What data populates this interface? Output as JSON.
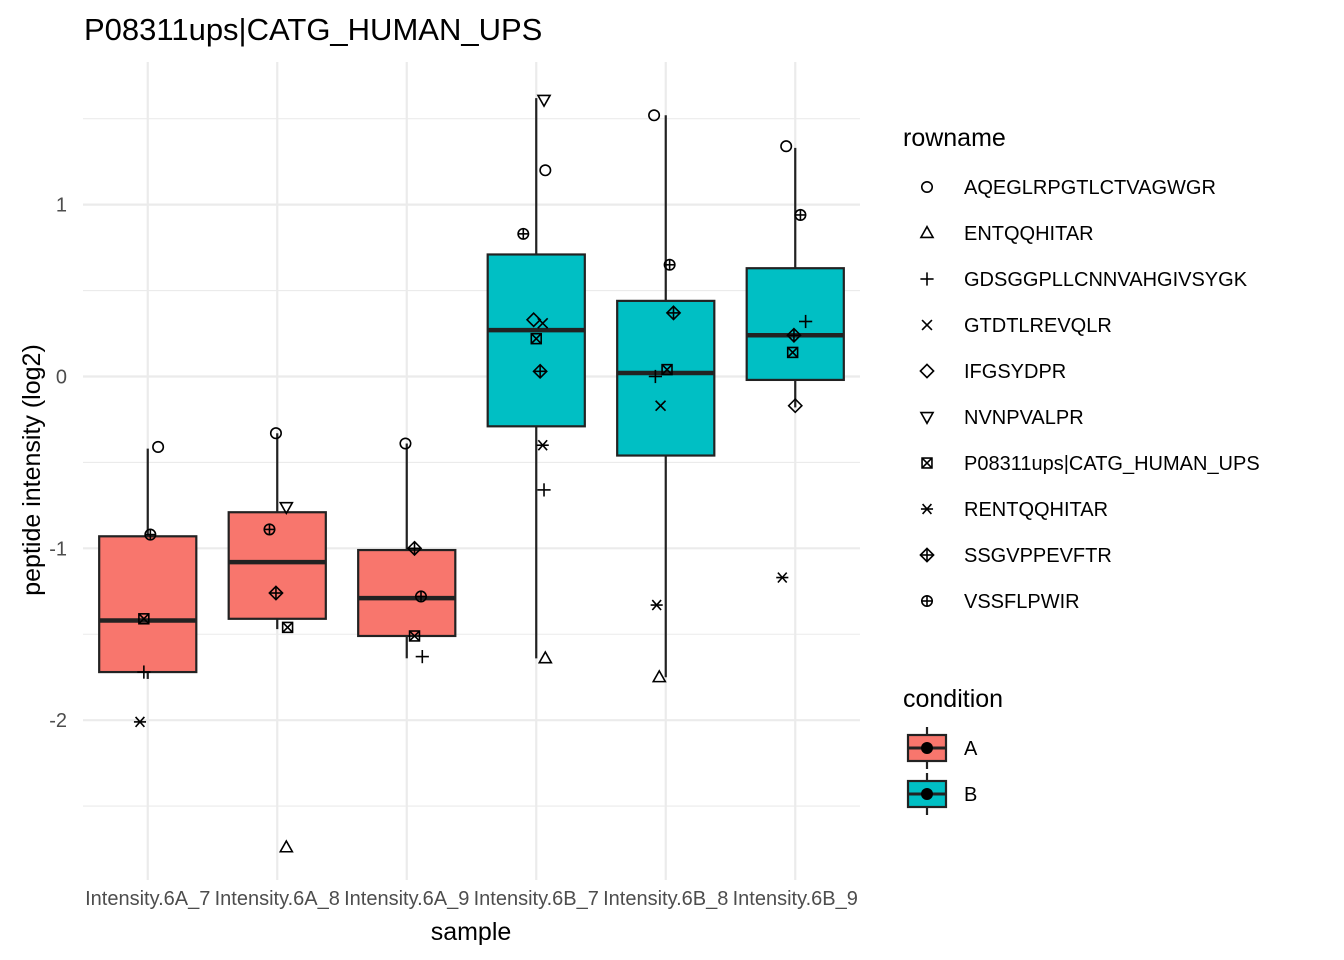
{
  "chart_data": {
    "type": "box",
    "title": "P08311ups|CATG_HUMAN_UPS",
    "xlabel": "sample",
    "ylabel": "peptide intensity (log2)",
    "categories": [
      "Intensity.6A_7",
      "Intensity.6A_8",
      "Intensity.6A_9",
      "Intensity.6B_7",
      "Intensity.6B_8",
      "Intensity.6B_9"
    ],
    "condition_of_category": [
      "A",
      "A",
      "A",
      "B",
      "B",
      "B"
    ],
    "yticks": [
      -2,
      -1,
      0,
      1
    ],
    "ylim": [
      -2.93,
      1.83
    ],
    "boxes": [
      {
        "category": "Intensity.6A_7",
        "q1": -1.72,
        "median": -1.42,
        "q3": -0.93,
        "whisker_low": -1.76,
        "whisker_high": -0.42
      },
      {
        "category": "Intensity.6A_8",
        "q1": -1.41,
        "median": -1.08,
        "q3": -0.79,
        "whisker_low": -1.47,
        "whisker_high": -0.33
      },
      {
        "category": "Intensity.6A_9",
        "q1": -1.51,
        "median": -1.29,
        "q3": -1.01,
        "whisker_low": -1.64,
        "whisker_high": -0.39
      },
      {
        "category": "Intensity.6B_7",
        "q1": -0.29,
        "median": 0.27,
        "q3": 0.71,
        "whisker_low": -1.64,
        "whisker_high": 1.62
      },
      {
        "category": "Intensity.6B_8",
        "q1": -0.46,
        "median": 0.02,
        "q3": 0.44,
        "whisker_low": -1.75,
        "whisker_high": 1.52
      },
      {
        "category": "Intensity.6B_9",
        "q1": -0.02,
        "median": 0.24,
        "q3": 0.63,
        "whisker_low": -0.18,
        "whisker_high": 1.33
      }
    ],
    "points": [
      {
        "category": "Intensity.6A_7",
        "rowname": "AQEGLRPGTLCTVAGWGR",
        "y": -0.41,
        "jitter": 0.08
      },
      {
        "category": "Intensity.6A_7",
        "rowname": "VSSFLPWIR",
        "y": -0.92,
        "jitter": 0.02
      },
      {
        "category": "Intensity.6A_7",
        "rowname": "P08311ups|CATG_HUMAN_UPS",
        "y": -1.41,
        "jitter": -0.03
      },
      {
        "category": "Intensity.6A_7",
        "rowname": "GDSGGPLLCNNVAHGIVSYGK",
        "y": -1.72,
        "jitter": -0.03
      },
      {
        "category": "Intensity.6A_7",
        "rowname": "RENTQQHITAR",
        "y": -2.01,
        "jitter": -0.06
      },
      {
        "category": "Intensity.6A_8",
        "rowname": "AQEGLRPGTLCTVAGWGR",
        "y": -0.33,
        "jitter": -0.01
      },
      {
        "category": "Intensity.6A_8",
        "rowname": "NVNPVALPR",
        "y": -0.76,
        "jitter": 0.07
      },
      {
        "category": "Intensity.6A_8",
        "rowname": "VSSFLPWIR",
        "y": -0.89,
        "jitter": -0.06
      },
      {
        "category": "Intensity.6A_8",
        "rowname": "SSGVPPEVFTR",
        "y": -1.26,
        "jitter": -0.01
      },
      {
        "category": "Intensity.6A_8",
        "rowname": "P08311ups|CATG_HUMAN_UPS",
        "y": -1.46,
        "jitter": 0.08
      },
      {
        "category": "Intensity.6A_8",
        "rowname": "ENTQQHITAR",
        "y": -2.74,
        "jitter": 0.07
      },
      {
        "category": "Intensity.6A_9",
        "rowname": "AQEGLRPGTLCTVAGWGR",
        "y": -0.39,
        "jitter": -0.01
      },
      {
        "category": "Intensity.6A_9",
        "rowname": "SSGVPPEVFTR",
        "y": -1.0,
        "jitter": 0.06
      },
      {
        "category": "Intensity.6A_9",
        "rowname": "VSSFLPWIR",
        "y": -1.28,
        "jitter": 0.11
      },
      {
        "category": "Intensity.6A_9",
        "rowname": "P08311ups|CATG_HUMAN_UPS",
        "y": -1.51,
        "jitter": 0.06
      },
      {
        "category": "Intensity.6A_9",
        "rowname": "GDSGGPLLCNNVAHGIVSYGK",
        "y": -1.63,
        "jitter": 0.12
      },
      {
        "category": "Intensity.6B_7",
        "rowname": "NVNPVALPR",
        "y": 1.61,
        "jitter": 0.06
      },
      {
        "category": "Intensity.6B_7",
        "rowname": "AQEGLRPGTLCTVAGWGR",
        "y": 1.2,
        "jitter": 0.07
      },
      {
        "category": "Intensity.6B_7",
        "rowname": "VSSFLPWIR",
        "y": 0.83,
        "jitter": -0.1
      },
      {
        "category": "Intensity.6B_7",
        "rowname": "IFGSYDPR",
        "y": 0.33,
        "jitter": -0.02
      },
      {
        "category": "Intensity.6B_7",
        "rowname": "GTDTLREVQLR",
        "y": 0.31,
        "jitter": 0.05
      },
      {
        "category": "Intensity.6B_7",
        "rowname": "P08311ups|CATG_HUMAN_UPS",
        "y": 0.22,
        "jitter": 0.0
      },
      {
        "category": "Intensity.6B_7",
        "rowname": "SSGVPPEVFTR",
        "y": 0.03,
        "jitter": 0.03
      },
      {
        "category": "Intensity.6B_7",
        "rowname": "RENTQQHITAR",
        "y": -0.4,
        "jitter": 0.05
      },
      {
        "category": "Intensity.6B_7",
        "rowname": "GDSGGPLLCNNVAHGIVSYGK",
        "y": -0.66,
        "jitter": 0.06
      },
      {
        "category": "Intensity.6B_7",
        "rowname": "ENTQQHITAR",
        "y": -1.64,
        "jitter": 0.07
      },
      {
        "category": "Intensity.6B_8",
        "rowname": "AQEGLRPGTLCTVAGWGR",
        "y": 1.52,
        "jitter": -0.09
      },
      {
        "category": "Intensity.6B_8",
        "rowname": "VSSFLPWIR",
        "y": 0.65,
        "jitter": 0.03
      },
      {
        "category": "Intensity.6B_8",
        "rowname": "SSGVPPEVFTR",
        "y": 0.37,
        "jitter": 0.06
      },
      {
        "category": "Intensity.6B_8",
        "rowname": "P08311ups|CATG_HUMAN_UPS",
        "y": 0.04,
        "jitter": 0.01
      },
      {
        "category": "Intensity.6B_8",
        "rowname": "GDSGGPLLCNNVAHGIVSYGK",
        "y": 0.0,
        "jitter": -0.08
      },
      {
        "category": "Intensity.6B_8",
        "rowname": "GTDTLREVQLR",
        "y": -0.17,
        "jitter": -0.04
      },
      {
        "category": "Intensity.6B_8",
        "rowname": "RENTQQHITAR",
        "y": -1.33,
        "jitter": -0.07
      },
      {
        "category": "Intensity.6B_8",
        "rowname": "ENTQQHITAR",
        "y": -1.75,
        "jitter": -0.05
      },
      {
        "category": "Intensity.6B_9",
        "rowname": "AQEGLRPGTLCTVAGWGR",
        "y": 1.34,
        "jitter": -0.07
      },
      {
        "category": "Intensity.6B_9",
        "rowname": "VSSFLPWIR",
        "y": 0.94,
        "jitter": 0.04
      },
      {
        "category": "Intensity.6B_9",
        "rowname": "GDSGGPLLCNNVAHGIVSYGK",
        "y": 0.32,
        "jitter": 0.08
      },
      {
        "category": "Intensity.6B_9",
        "rowname": "SSGVPPEVFTR",
        "y": 0.24,
        "jitter": -0.01
      },
      {
        "category": "Intensity.6B_9",
        "rowname": "P08311ups|CATG_HUMAN_UPS",
        "y": 0.14,
        "jitter": -0.02
      },
      {
        "category": "Intensity.6B_9",
        "rowname": "IFGSYDPR",
        "y": -0.17,
        "jitter": 0.0
      },
      {
        "category": "Intensity.6B_9",
        "rowname": "RENTQQHITAR",
        "y": -1.17,
        "jitter": -0.1
      }
    ],
    "legend_rowname": {
      "title": "rowname",
      "position": "right",
      "entries": [
        {
          "label": "AQEGLRPGTLCTVAGWGR",
          "shape": "circle-open"
        },
        {
          "label": "ENTQQHITAR",
          "shape": "triangle-open"
        },
        {
          "label": "GDSGGPLLCNNVAHGIVSYGK",
          "shape": "plus"
        },
        {
          "label": "GTDTLREVQLR",
          "shape": "cross"
        },
        {
          "label": "IFGSYDPR",
          "shape": "diamond-open"
        },
        {
          "label": "NVNPVALPR",
          "shape": "triangle-down-open"
        },
        {
          "label": "P08311ups|CATG_HUMAN_UPS",
          "shape": "square-cross"
        },
        {
          "label": "RENTQQHITAR",
          "shape": "asterisk"
        },
        {
          "label": "SSGVPPEVFTR",
          "shape": "diamond-plus"
        },
        {
          "label": "VSSFLPWIR",
          "shape": "circle-plus"
        }
      ]
    },
    "legend_condition": {
      "title": "condition",
      "position": "right",
      "entries": [
        {
          "label": "A",
          "color": "#F8766D"
        },
        {
          "label": "B",
          "color": "#00BFC4"
        }
      ]
    },
    "colors": {
      "A": "#F8766D",
      "B": "#00BFC4",
      "grid": "#ebebeb",
      "box_outline": "#222222"
    },
    "grid": true
  }
}
